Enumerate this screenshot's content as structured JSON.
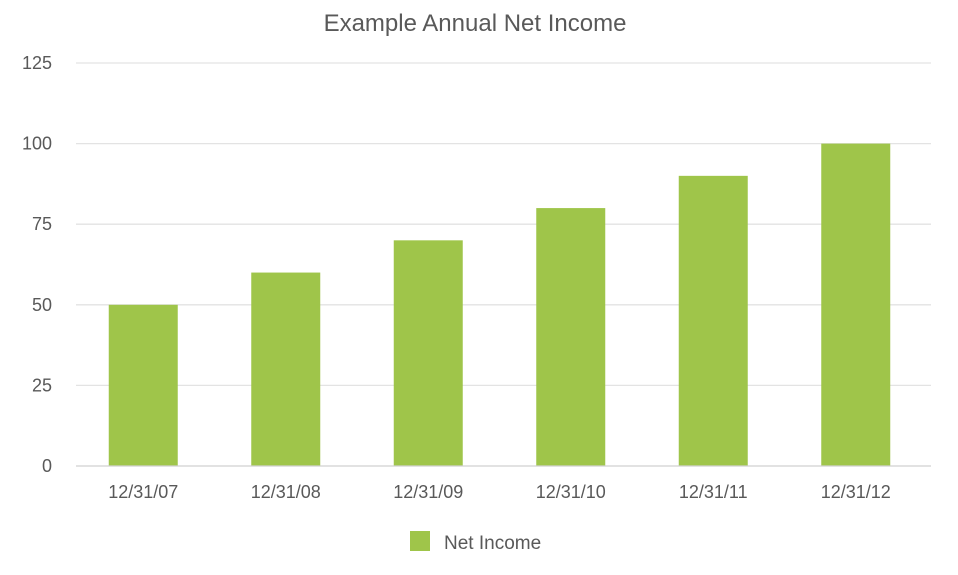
{
  "chart_data": {
    "type": "bar",
    "title": "Example Annual Net Income",
    "xlabel": "",
    "ylabel": "",
    "categories": [
      "12/31/07",
      "12/31/08",
      "12/31/09",
      "12/31/10",
      "12/31/11",
      "12/31/12"
    ],
    "series": [
      {
        "name": "Net Income",
        "values": [
          50,
          60,
          70,
          80,
          90,
          100
        ],
        "color": "#9fc54a"
      }
    ],
    "ylim": [
      0,
      125
    ],
    "yticks": [
      0,
      25,
      50,
      75,
      100,
      125
    ],
    "grid": true,
    "legend_position": "bottom"
  }
}
